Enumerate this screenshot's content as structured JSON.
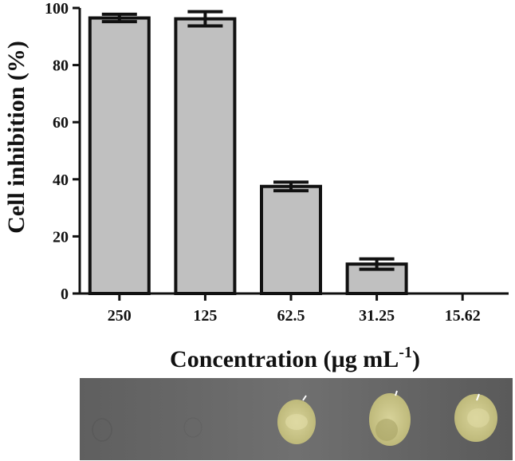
{
  "chart_data": {
    "type": "bar",
    "categories": [
      "250",
      "125",
      "62.5",
      "31.25",
      "15.62"
    ],
    "values": [
      96.5,
      96.2,
      37.5,
      10.3,
      0
    ],
    "errors": [
      1.3,
      2.5,
      1.5,
      1.8,
      0
    ],
    "title": "",
    "xlabel_main": "Concentration (µg mL",
    "xlabel_sup": "-1",
    "xlabel_close": ")",
    "ylabel": "Cell inhibition (%)",
    "ylim": [
      0,
      100
    ],
    "yticks": [
      "0",
      "20",
      "40",
      "60",
      "80",
      "100"
    ],
    "grid": false,
    "legend": "none",
    "colors": {
      "bar_fill": "#c0c0c0",
      "bar_stroke": "#111111"
    }
  },
  "photo": {
    "description_icons": [
      "plate-photo"
    ],
    "colors": {
      "background": "#6b6b6b",
      "colony": "#cfc98a"
    }
  }
}
